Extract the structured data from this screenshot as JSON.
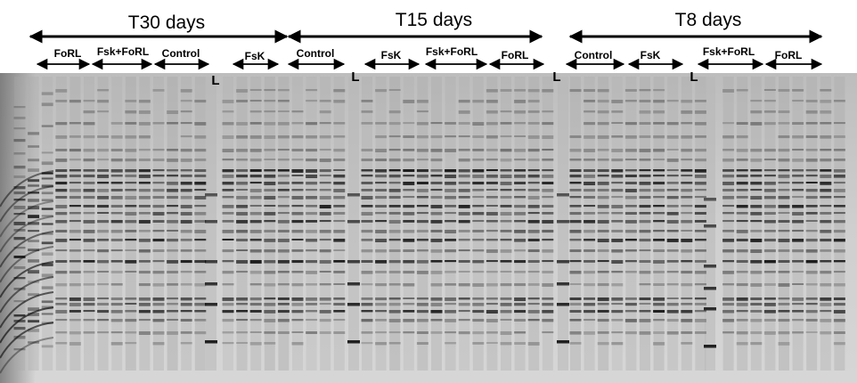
{
  "time_groups": [
    {
      "label": "T30 days"
    },
    {
      "label": "T15 days"
    },
    {
      "label": "T8 days"
    }
  ],
  "treatments": [
    {
      "label": "FoRL"
    },
    {
      "label": "Fsk+FoRL"
    },
    {
      "label": "Control"
    },
    {
      "label": "FsK"
    },
    {
      "label": "Control"
    },
    {
      "label": "FsK"
    },
    {
      "label": "Fsk+FoRL"
    },
    {
      "label": "FoRL"
    },
    {
      "label": "Control"
    },
    {
      "label": "FsK"
    },
    {
      "label": "Fsk+FoRL"
    },
    {
      "label": "FoRL"
    }
  ],
  "ladder_label": "L",
  "colors": {
    "arrow": "#000000",
    "gel_background": "#c9c9c9",
    "band": "#1a1a1a"
  }
}
